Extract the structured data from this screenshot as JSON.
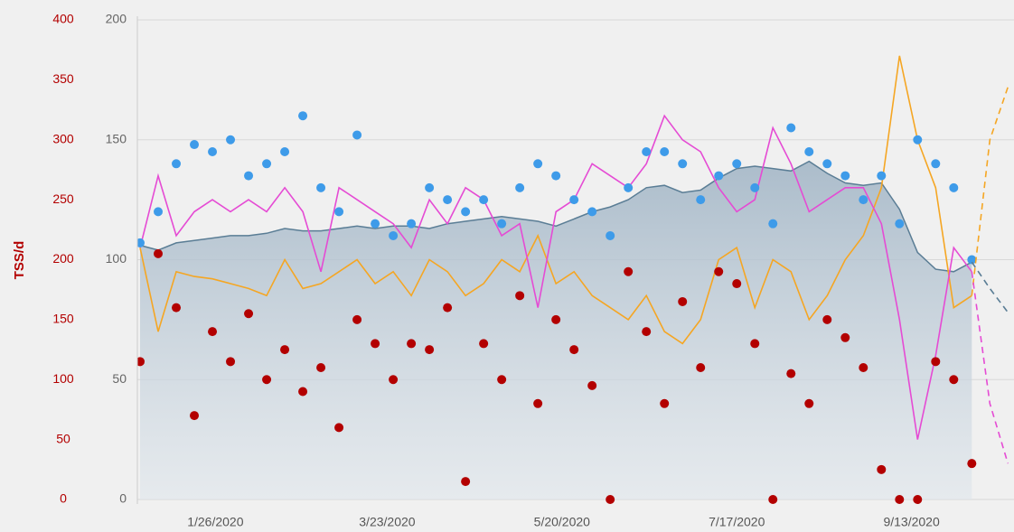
{
  "chart_data": {
    "type": "combo",
    "ylabel": "TSS/d",
    "x": [
      "1/1/2020",
      "1/7/2020",
      "1/13/2020",
      "1/19/2020",
      "1/25/2020",
      "1/31/2020",
      "2/6/2020",
      "2/12/2020",
      "2/18/2020",
      "2/24/2020",
      "3/1/2020",
      "3/7/2020",
      "3/13/2020",
      "3/19/2020",
      "3/25/2020",
      "3/31/2020",
      "4/6/2020",
      "4/12/2020",
      "4/18/2020",
      "4/24/2020",
      "4/30/2020",
      "5/6/2020",
      "5/12/2020",
      "5/18/2020",
      "5/24/2020",
      "5/30/2020",
      "6/5/2020",
      "6/11/2020",
      "6/17/2020",
      "6/23/2020",
      "6/29/2020",
      "7/5/2020",
      "7/11/2020",
      "7/17/2020",
      "7/23/2020",
      "7/29/2020",
      "8/4/2020",
      "8/10/2020",
      "8/16/2020",
      "8/22/2020",
      "8/28/2020",
      "9/3/2020",
      "9/9/2020",
      "9/15/2020",
      "9/21/2020",
      "9/27/2020",
      "10/3/2020"
    ],
    "xlim": [
      "1/1/2020",
      "10/17/2020"
    ],
    "xticks": [
      "1/26/2020",
      "3/23/2020",
      "5/20/2020",
      "7/17/2020",
      "9/13/2020"
    ],
    "ylim": [
      0,
      400
    ],
    "yticks": [
      0,
      50,
      100,
      150,
      200,
      250,
      300,
      350,
      400
    ],
    "y2lim": [
      0,
      200
    ],
    "y2ticks": [
      0,
      50,
      100,
      150,
      200
    ],
    "grid": true,
    "series": [
      {
        "type": "area",
        "axis": "y2",
        "color": "#5a7d95",
        "values": [
          106,
          104,
          107,
          108,
          109,
          110,
          110,
          111,
          113,
          112,
          112,
          113,
          114,
          113,
          114,
          114,
          113,
          115,
          116,
          117,
          118,
          117,
          116,
          114,
          117,
          120,
          122,
          125,
          130,
          131,
          128,
          129,
          134,
          138,
          139,
          138,
          137,
          141,
          136,
          132,
          131,
          132,
          121,
          103,
          96,
          95,
          99
        ]
      },
      {
        "type": "line",
        "axis": "y2",
        "color": "#f5a623",
        "values": [
          105,
          70,
          95,
          93,
          92,
          90,
          88,
          85,
          100,
          88,
          90,
          95,
          100,
          90,
          95,
          85,
          100,
          95,
          85,
          90,
          100,
          95,
          110,
          90,
          95,
          85,
          80,
          75,
          85,
          70,
          65,
          75,
          100,
          105,
          80,
          100,
          95,
          75,
          85,
          100,
          110,
          130,
          185,
          150,
          130,
          80,
          85
        ]
      },
      {
        "type": "line",
        "axis": "y2",
        "color": "#e54bd4",
        "values": [
          105,
          135,
          110,
          120,
          125,
          120,
          125,
          120,
          130,
          120,
          95,
          130,
          125,
          120,
          115,
          105,
          125,
          115,
          130,
          125,
          110,
          115,
          80,
          120,
          125,
          140,
          135,
          130,
          140,
          160,
          150,
          145,
          130,
          120,
          125,
          155,
          140,
          120,
          125,
          130,
          130,
          115,
          75,
          25,
          60,
          105,
          95
        ]
      },
      {
        "type": "scatter",
        "axis": "y",
        "color": "#b30000",
        "values": [
          115,
          205,
          160,
          70,
          140,
          115,
          155,
          100,
          125,
          90,
          110,
          60,
          150,
          130,
          100,
          130,
          125,
          160,
          15,
          130,
          100,
          170,
          80,
          150,
          125,
          95,
          0,
          190,
          140,
          80,
          165,
          110,
          190,
          180,
          130,
          0,
          105,
          80,
          150,
          135,
          110,
          25,
          0,
          0,
          115,
          100,
          30
        ]
      },
      {
        "type": "scatter",
        "axis": "y2",
        "color": "#3e9be9",
        "values": [
          107,
          120,
          140,
          148,
          145,
          150,
          135,
          140,
          145,
          160,
          130,
          120,
          152,
          115,
          110,
          115,
          130,
          125,
          120,
          125,
          115,
          130,
          140,
          135,
          125,
          120,
          110,
          130,
          145,
          145,
          140,
          125,
          135,
          140,
          130,
          115,
          155,
          145,
          140,
          135,
          125,
          135,
          115,
          150,
          140,
          130,
          100
        ]
      },
      {
        "type": "line",
        "axis": "y2",
        "color": "#5a7d95",
        "dashed": true,
        "x": [
          "10/3/2020",
          "10/9/2020",
          "10/15/2020"
        ],
        "values": [
          99,
          88,
          78
        ]
      },
      {
        "type": "line",
        "axis": "y2",
        "color": "#f5a623",
        "dashed": true,
        "x": [
          "10/3/2020",
          "10/9/2020",
          "10/15/2020"
        ],
        "values": [
          85,
          150,
          172
        ]
      },
      {
        "type": "line",
        "axis": "y2",
        "color": "#e54bd4",
        "dashed": true,
        "x": [
          "10/3/2020",
          "10/9/2020",
          "10/15/2020"
        ],
        "values": [
          95,
          40,
          15
        ]
      }
    ]
  }
}
